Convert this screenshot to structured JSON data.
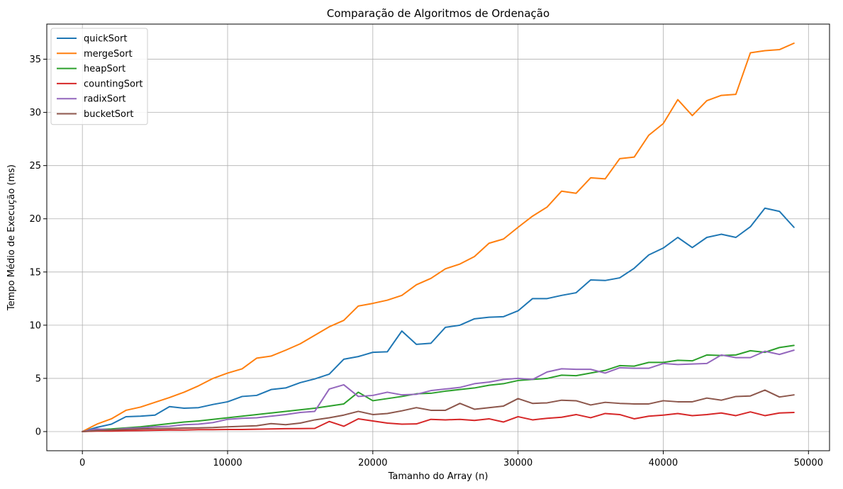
{
  "chart_data": {
    "type": "line",
    "title": "Comparação de Algoritmos de Ordenação",
    "xlabel": "Tamanho do Array (n)",
    "ylabel": "Tempo Médio de Execução (ms)",
    "xlim": [
      -2450,
      51450
    ],
    "ylim": [
      -1.8,
      38.3
    ],
    "xticks": [
      0,
      10000,
      20000,
      30000,
      40000,
      50000
    ],
    "yticks": [
      0,
      5,
      10,
      15,
      20,
      25,
      30,
      35
    ],
    "grid": true,
    "legend_position": "top-left",
    "x": [
      0,
      1000,
      2000,
      3000,
      4000,
      5000,
      6000,
      7000,
      8000,
      9000,
      10000,
      11000,
      12000,
      13000,
      14000,
      15000,
      16000,
      17000,
      18000,
      19000,
      20000,
      21000,
      22000,
      23000,
      24000,
      25000,
      26000,
      27000,
      28000,
      29000,
      30000,
      31000,
      32000,
      33000,
      34000,
      35000,
      36000,
      37000,
      38000,
      39000,
      40000,
      41000,
      42000,
      43000,
      44000,
      45000,
      46000,
      47000,
      48000,
      49000
    ],
    "series": [
      {
        "name": "quickSort",
        "color": "#1f77b4",
        "values": [
          0,
          0.4,
          0.7,
          1.4,
          1.45,
          1.55,
          2.35,
          2.2,
          2.25,
          2.55,
          2.8,
          3.3,
          3.4,
          3.95,
          4.1,
          4.6,
          4.95,
          5.4,
          6.8,
          7.05,
          7.45,
          7.5,
          9.45,
          8.2,
          8.3,
          9.8,
          10.0,
          10.6,
          10.75,
          10.8,
          11.35,
          12.5,
          12.5,
          12.8,
          13.05,
          14.25,
          14.2,
          14.45,
          15.35,
          16.6,
          17.25,
          18.25,
          17.3,
          18.25,
          18.55,
          18.25,
          19.25,
          21.0,
          20.7,
          19.2
        ]
      },
      {
        "name": "mergeSort",
        "color": "#ff7f0e",
        "values": [
          0,
          0.7,
          1.2,
          2.0,
          2.3,
          2.75,
          3.2,
          3.7,
          4.3,
          5.0,
          5.5,
          5.9,
          6.9,
          7.1,
          7.65,
          8.25,
          9.05,
          9.85,
          10.45,
          11.8,
          12.05,
          12.35,
          12.8,
          13.8,
          14.4,
          15.3,
          15.75,
          16.45,
          17.7,
          18.1,
          19.2,
          20.25,
          21.1,
          22.6,
          22.4,
          23.85,
          23.75,
          25.65,
          25.8,
          27.85,
          28.95,
          31.2,
          29.7,
          31.1,
          31.6,
          31.7,
          35.6,
          35.8,
          35.9,
          36.5
        ]
      },
      {
        "name": "heapSort",
        "color": "#2ca02c",
        "values": [
          0,
          0.2,
          0.25,
          0.35,
          0.45,
          0.6,
          0.75,
          0.9,
          1.0,
          1.15,
          1.3,
          1.45,
          1.6,
          1.75,
          1.9,
          2.05,
          2.2,
          2.4,
          2.6,
          3.7,
          2.9,
          3.1,
          3.3,
          3.55,
          3.6,
          3.8,
          3.95,
          4.1,
          4.35,
          4.5,
          4.8,
          4.9,
          5.0,
          5.3,
          5.25,
          5.5,
          5.75,
          6.2,
          6.15,
          6.5,
          6.5,
          6.7,
          6.65,
          7.2,
          7.15,
          7.2,
          7.6,
          7.45,
          7.9,
          8.1
        ]
      },
      {
        "name": "countingSort",
        "color": "#d62728",
        "values": [
          0,
          0.05,
          0.05,
          0.08,
          0.1,
          0.12,
          0.15,
          0.15,
          0.18,
          0.18,
          0.2,
          0.2,
          0.22,
          0.25,
          0.27,
          0.28,
          0.3,
          0.95,
          0.5,
          1.2,
          1.0,
          0.8,
          0.7,
          0.72,
          1.15,
          1.1,
          1.15,
          1.05,
          1.2,
          0.9,
          1.4,
          1.1,
          1.25,
          1.35,
          1.6,
          1.3,
          1.7,
          1.6,
          1.2,
          1.45,
          1.55,
          1.7,
          1.5,
          1.6,
          1.75,
          1.5,
          1.85,
          1.5,
          1.75,
          1.8
        ]
      },
      {
        "name": "radixSort",
        "color": "#9467bd",
        "values": [
          0,
          0.25,
          0.15,
          0.3,
          0.35,
          0.45,
          0.5,
          0.65,
          0.7,
          0.85,
          1.15,
          1.25,
          1.3,
          1.45,
          1.6,
          1.8,
          1.9,
          4.0,
          4.4,
          3.3,
          3.4,
          3.7,
          3.45,
          3.5,
          3.85,
          4.0,
          4.15,
          4.5,
          4.65,
          4.9,
          5.0,
          4.9,
          5.6,
          5.9,
          5.85,
          5.85,
          5.5,
          6.0,
          5.95,
          5.95,
          6.4,
          6.3,
          6.35,
          6.4,
          7.2,
          6.95,
          6.95,
          7.55,
          7.25,
          7.65
        ]
      },
      {
        "name": "bucketSort",
        "color": "#8c564b",
        "values": [
          0,
          0.1,
          0.15,
          0.2,
          0.25,
          0.28,
          0.3,
          0.33,
          0.35,
          0.38,
          0.45,
          0.5,
          0.55,
          0.75,
          0.65,
          0.8,
          1.1,
          1.3,
          1.55,
          1.9,
          1.6,
          1.7,
          1.95,
          2.25,
          2.0,
          2.0,
          2.65,
          2.1,
          2.25,
          2.4,
          3.1,
          2.65,
          2.7,
          2.95,
          2.9,
          2.5,
          2.75,
          2.65,
          2.6,
          2.6,
          2.9,
          2.8,
          2.8,
          3.15,
          2.95,
          3.3,
          3.35,
          3.9,
          3.25,
          3.45
        ]
      }
    ]
  }
}
